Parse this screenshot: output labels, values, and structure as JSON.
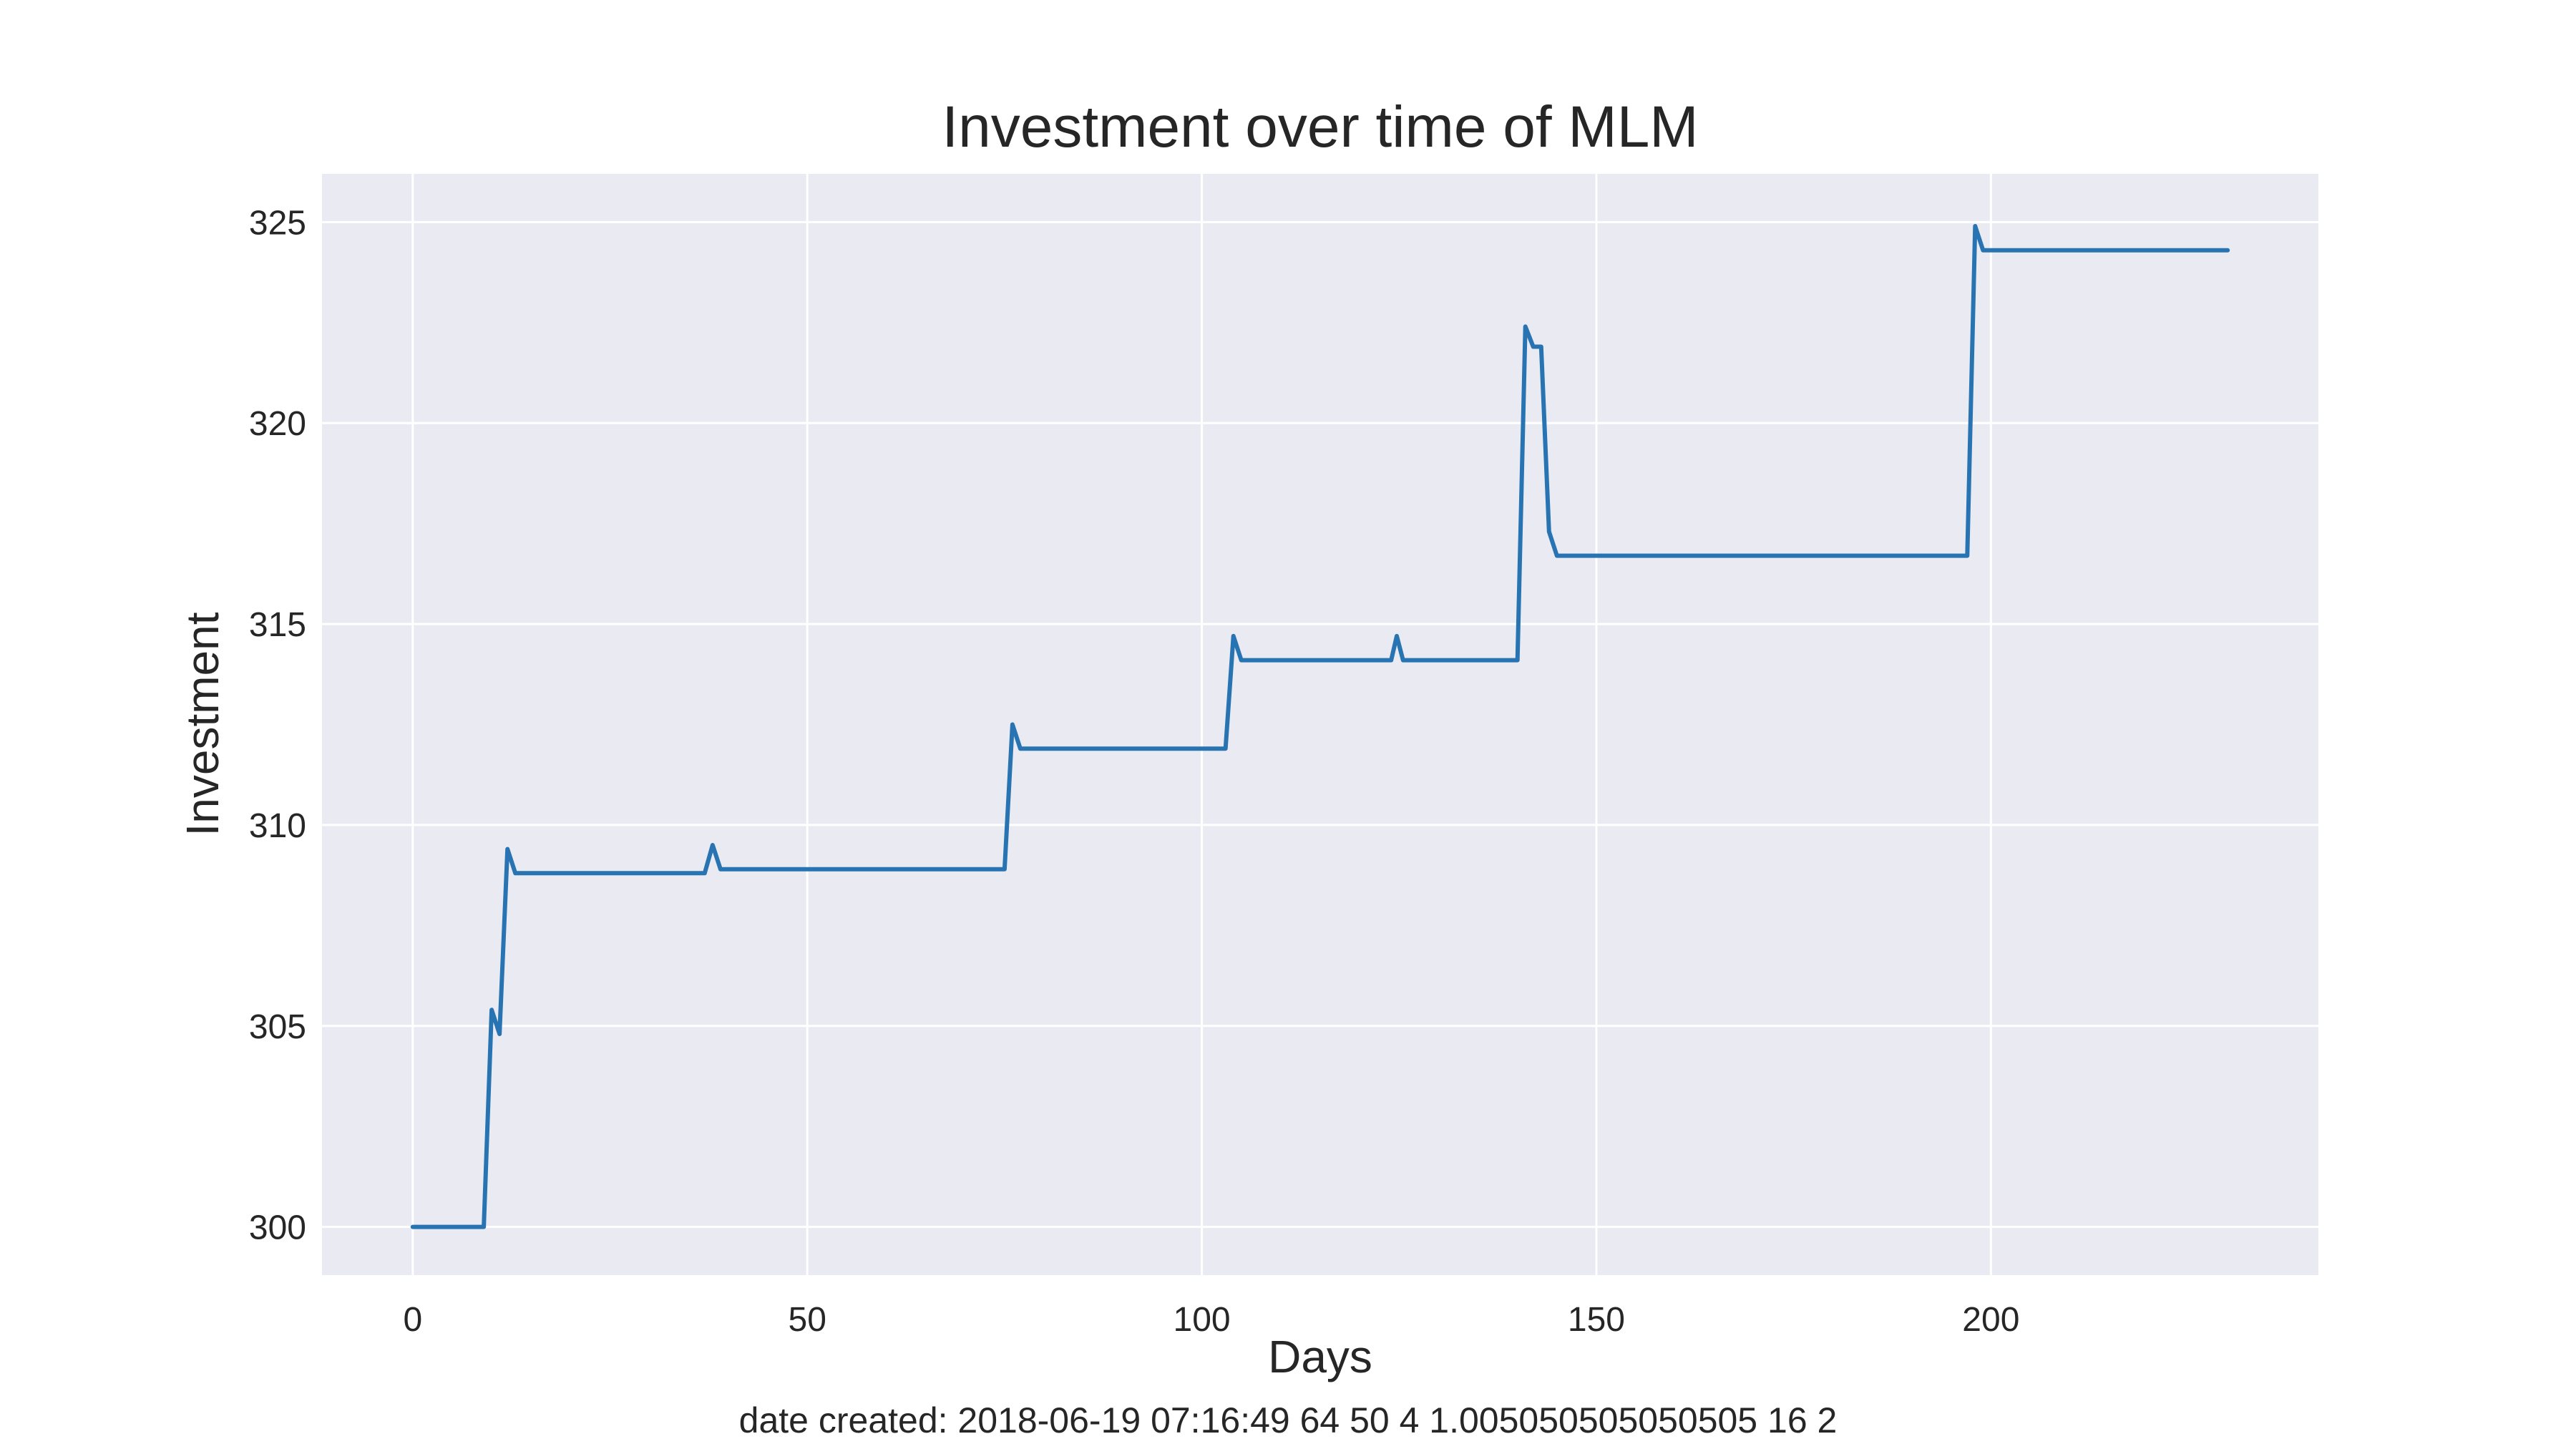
{
  "chart_data": {
    "type": "line",
    "title": "Investment over time of MLM",
    "xlabel": "Days",
    "ylabel": "Investment",
    "xlim": [
      -11.5,
      241.5
    ],
    "ylim": [
      298.8,
      326.2
    ],
    "xticks": [
      0,
      50,
      100,
      150,
      200
    ],
    "yticks": [
      300,
      305,
      310,
      315,
      320,
      325
    ],
    "grid": true,
    "legend": "none",
    "colors": {
      "line": "#2874b2",
      "plot_background": "#eaeaf2",
      "grid": "#ffffff"
    },
    "series": [
      {
        "points": [
          [
            0,
            300.0
          ],
          [
            9,
            300.0
          ],
          [
            10,
            305.4
          ],
          [
            11,
            304.8
          ],
          [
            12,
            309.4
          ],
          [
            13,
            308.8
          ],
          [
            37,
            308.8
          ],
          [
            38,
            309.5
          ],
          [
            39,
            308.9
          ],
          [
            75,
            308.9
          ],
          [
            76,
            312.5
          ],
          [
            77,
            311.9
          ],
          [
            103,
            311.9
          ],
          [
            104,
            314.7
          ],
          [
            105,
            314.1
          ],
          [
            124,
            314.1
          ],
          [
            124.7,
            314.7
          ],
          [
            125.5,
            314.1
          ],
          [
            140,
            314.1
          ],
          [
            141,
            322.4
          ],
          [
            142,
            321.9
          ],
          [
            143,
            321.9
          ],
          [
            144,
            317.3
          ],
          [
            145,
            316.7
          ],
          [
            197,
            316.7
          ],
          [
            198,
            324.9
          ],
          [
            199,
            324.3
          ],
          [
            230,
            324.3
          ]
        ]
      }
    ],
    "caption": "date created: 2018-06-19 07:16:49 64 50 4 1.005050505050505 16 2"
  }
}
